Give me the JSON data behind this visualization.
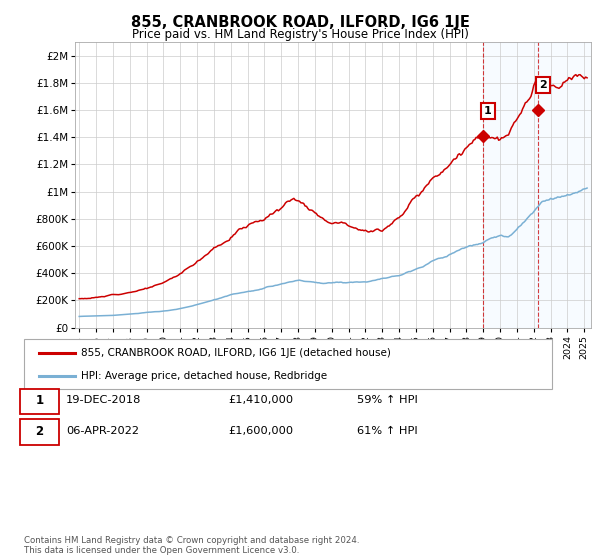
{
  "title": "855, CRANBROOK ROAD, ILFORD, IG6 1JE",
  "subtitle": "Price paid vs. HM Land Registry's House Price Index (HPI)",
  "red_label": "855, CRANBROOK ROAD, ILFORD, IG6 1JE (detached house)",
  "blue_label": "HPI: Average price, detached house, Redbridge",
  "annotation1_num": "1",
  "annotation1_date": "19-DEC-2018",
  "annotation1_price": "£1,410,000",
  "annotation1_pct": "59% ↑ HPI",
  "annotation2_num": "2",
  "annotation2_date": "06-APR-2022",
  "annotation2_price": "£1,600,000",
  "annotation2_pct": "61% ↑ HPI",
  "footer1": "Contains HM Land Registry data © Crown copyright and database right 2024.",
  "footer2": "This data is licensed under the Open Government Licence v3.0.",
  "ylim": [
    0,
    2100000
  ],
  "yticks": [
    0,
    200000,
    400000,
    600000,
    800000,
    1000000,
    1200000,
    1400000,
    1600000,
    1800000,
    2000000
  ],
  "ytick_labels": [
    "£0",
    "£200K",
    "£400K",
    "£600K",
    "£800K",
    "£1M",
    "£1.2M",
    "£1.4M",
    "£1.6M",
    "£1.8M",
    "£2M"
  ],
  "bg_color": "#ffffff",
  "grid_color": "#cccccc",
  "red_color": "#cc0000",
  "blue_color": "#7ab0d4",
  "shade_color": "#ddeeff",
  "point1_year": 2018.97,
  "point1_y": 1410000,
  "point2_year": 2022.27,
  "point2_y": 1600000,
  "xmin": 1995.0,
  "xmax": 2025.2
}
